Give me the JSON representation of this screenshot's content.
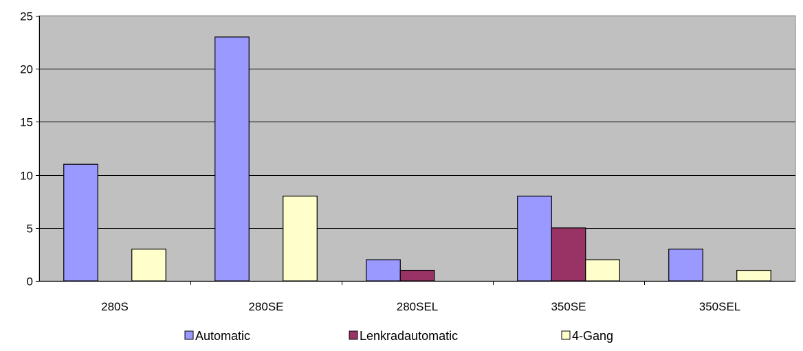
{
  "chart_data": {
    "type": "bar",
    "title": "",
    "xlabel": "",
    "ylabel": "",
    "categories": [
      "280S",
      "280SE",
      "280SEL",
      "350SE",
      "350SEL"
    ],
    "series": [
      {
        "name": "Automatic",
        "values": [
          11,
          23,
          2,
          8,
          3
        ],
        "color": "#9999ff"
      },
      {
        "name": "Lenkradautomatic",
        "values": [
          0,
          0,
          1,
          5,
          0
        ],
        "color": "#993366"
      },
      {
        "name": "4-Gang",
        "values": [
          3,
          8,
          0,
          2,
          1
        ],
        "color": "#ffffcc"
      }
    ],
    "ylim": [
      0,
      25
    ],
    "yticks": [
      0,
      5,
      10,
      15,
      20,
      25
    ],
    "grid": true,
    "plot_background": "#c0c0c0",
    "legend_position": "bottom"
  }
}
